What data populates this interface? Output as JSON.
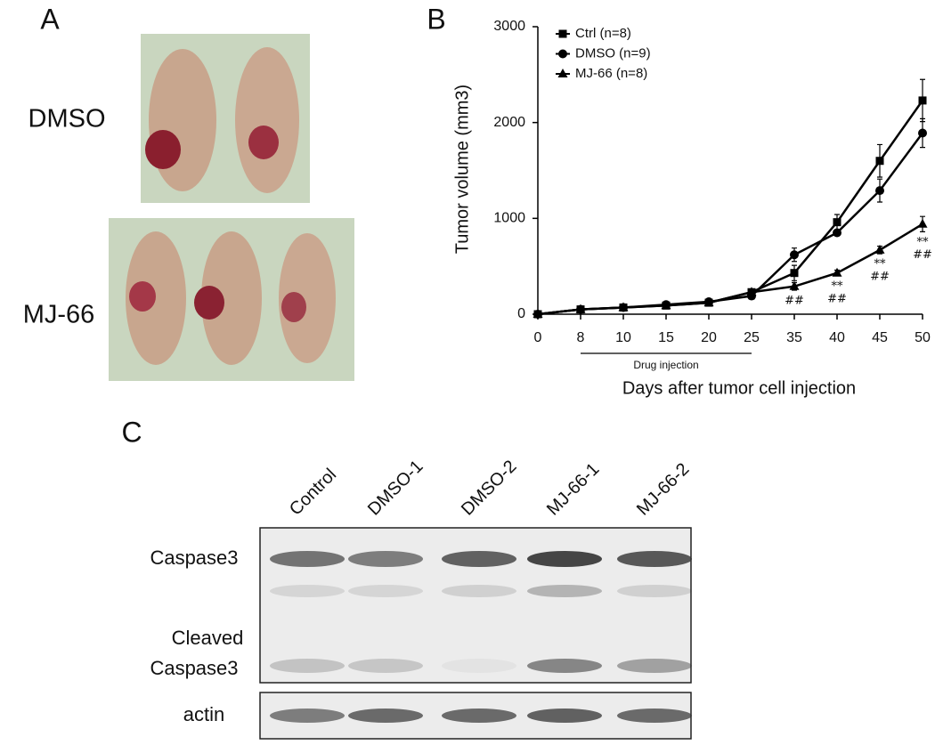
{
  "panel_labels": [
    "A",
    "B",
    "C"
  ],
  "panel_a": {
    "groups": [
      "DMSO",
      "MJ-66"
    ]
  },
  "chart_data": {
    "type": "line",
    "ylabel": "Tumor volume (mm3)",
    "xlabel": "Days after tumor cell injection",
    "categories": [
      "0",
      "8",
      "10",
      "15",
      "20",
      "25",
      "35",
      "40",
      "45",
      "50"
    ],
    "series": [
      {
        "name": "Ctrl (n=8)",
        "color": "#000000",
        "marker": "square",
        "values": [
          0,
          50,
          70,
          90,
          120,
          230,
          430,
          960,
          1600,
          2230
        ],
        "errors": [
          0,
          10,
          10,
          10,
          10,
          20,
          80,
          80,
          170,
          220
        ]
      },
      {
        "name": "DMSO (n=9)",
        "color": "#000000",
        "marker": "circle",
        "values": [
          0,
          50,
          70,
          100,
          130,
          190,
          620,
          850,
          1290,
          1890
        ],
        "errors": [
          0,
          10,
          10,
          10,
          10,
          20,
          70,
          30,
          120,
          150
        ]
      },
      {
        "name": "MJ-66 (n=8)",
        "color": "#000000",
        "marker": "triangle",
        "values": [
          0,
          50,
          70,
          90,
          120,
          230,
          290,
          430,
          670,
          940
        ],
        "errors": [
          0,
          10,
          10,
          10,
          10,
          20,
          40,
          30,
          40,
          80
        ]
      }
    ],
    "ylim": [
      0,
      3000
    ],
    "yticks": [
      0,
      1000,
      2000,
      3000
    ],
    "legend": "upper left",
    "annotations": [
      {
        "x": "35",
        "lines": [
          "##"
        ]
      },
      {
        "x": "40",
        "lines": [
          "**",
          "##"
        ]
      },
      {
        "x": "45",
        "lines": [
          "**",
          "##"
        ]
      },
      {
        "x": "50",
        "lines": [
          "**",
          "##"
        ]
      }
    ],
    "bracket": {
      "text": "Drug injection",
      "from": "8",
      "to": "25"
    }
  },
  "panel_c": {
    "lanes": [
      "Control",
      "DMSO-1",
      "DMSO-2",
      "MJ-66-1",
      "MJ-66-2"
    ],
    "rows": [
      "Caspase3",
      "Cleaved",
      "Caspase3",
      "actin"
    ]
  }
}
